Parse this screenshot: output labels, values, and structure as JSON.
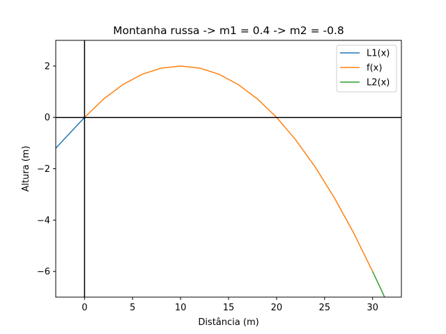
{
  "chart_data": {
    "type": "line",
    "title": "Montanha russa -> m1 = 0.4 -> m2 = -0.8",
    "xlabel": "Distância (m)",
    "ylabel": "Altura (m)",
    "xlim": [
      -3,
      33
    ],
    "ylim": [
      -7,
      3
    ],
    "xticks": [
      0,
      5,
      10,
      15,
      20,
      25,
      30
    ],
    "yticks": [
      -6,
      -4,
      -2,
      0,
      2
    ],
    "xtick_labels": [
      "0",
      "5",
      "10",
      "15",
      "20",
      "25",
      "30"
    ],
    "ytick_labels": [
      "−6",
      "−4",
      "−2",
      "0",
      "2"
    ],
    "grid": false,
    "legend_position": "top-right",
    "reference_lines": [
      {
        "orientation": "horizontal",
        "value": 0,
        "color": "#000000"
      },
      {
        "orientation": "vertical",
        "value": 0,
        "color": "#000000"
      }
    ],
    "series": [
      {
        "name": "L1(x)",
        "color": "#1f77b4",
        "x": [
          -3,
          0
        ],
        "y": [
          -1.2,
          0
        ]
      },
      {
        "name": "f(x)",
        "color": "#ff7f0e",
        "x": [
          0,
          2,
          4,
          6,
          8,
          10,
          12,
          14,
          16,
          18,
          20,
          22,
          24,
          26,
          28,
          30
        ],
        "y": [
          0,
          0.72,
          1.28,
          1.68,
          1.92,
          2.0,
          1.92,
          1.68,
          1.28,
          0.72,
          0,
          -0.88,
          -1.92,
          -3.12,
          -4.48,
          -6.0
        ]
      },
      {
        "name": "L2(x)",
        "color": "#2ca02c",
        "x": [
          30,
          31.25
        ],
        "y": [
          -6,
          -7
        ]
      }
    ]
  }
}
